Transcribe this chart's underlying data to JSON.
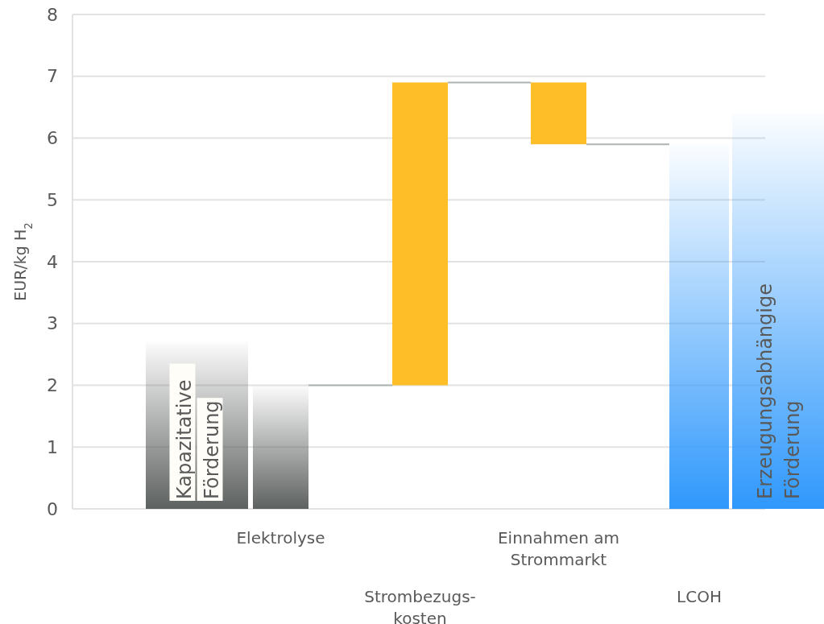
{
  "chart_data": {
    "type": "bar",
    "ylabel": "EUR/kg H$_{2}$",
    "categories": [
      "Kapazitative Förderung",
      "Elektrolyse",
      "Strombezugs-kosten",
      "Einnahmen am Strommarkt",
      "LCOH",
      "Erzeugungsabhängige Förderung"
    ],
    "values": [
      2.7,
      2.0,
      4.9,
      -1.0,
      5.9,
      6.4
    ],
    "base": [
      null,
      null,
      2.0,
      6.9,
      null,
      null
    ],
    "colors": [
      "#5d615f",
      "#5d615f",
      "#fdbe27",
      "#fdbe27",
      "#2f98fc",
      "#2f98fc"
    ],
    "ylim": [
      0,
      8
    ],
    "yticks": [
      0,
      1,
      2,
      3,
      4,
      5,
      6,
      7,
      8
    ],
    "grid": "y"
  }
}
